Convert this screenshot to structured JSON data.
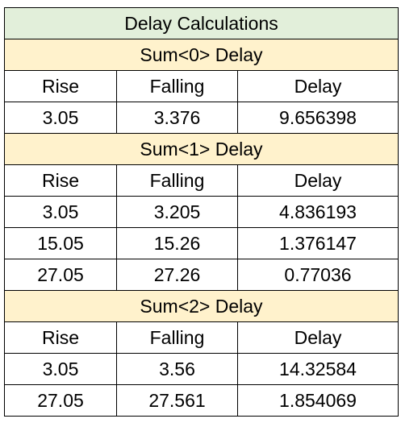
{
  "title": "Delay Calculations",
  "headers": [
    "Rise",
    "Falling",
    "Delay"
  ],
  "sections": [
    {
      "label": "Sum<0> Delay",
      "rows": [
        [
          "3.05",
          "3.376",
          "9.656398"
        ]
      ]
    },
    {
      "label": "Sum<1> Delay",
      "rows": [
        [
          "3.05",
          "3.205",
          "4.836193"
        ],
        [
          "15.05",
          "15.26",
          "1.376147"
        ],
        [
          "27.05",
          "27.26",
          "0.77036"
        ]
      ]
    },
    {
      "label": "Sum<2> Delay",
      "rows": [
        [
          "3.05",
          "3.56",
          "14.32584"
        ],
        [
          "27.05",
          "27.561",
          "1.854069"
        ]
      ]
    }
  ],
  "colors": {
    "title_bg": "#e2efda",
    "section_bg": "#fff2cc",
    "border": "#000000"
  }
}
